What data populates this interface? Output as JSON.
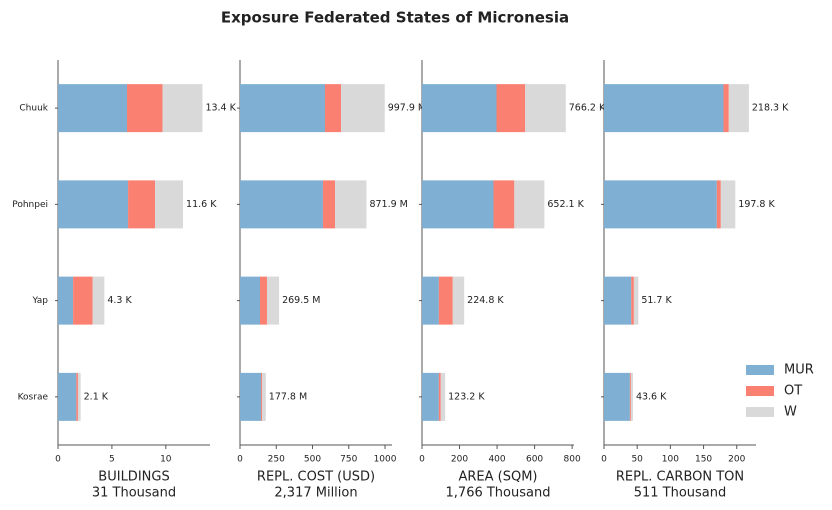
{
  "title": "Exposure Federated States of Micronesia",
  "chart_data": [
    {
      "type": "bar",
      "orientation": "horizontal",
      "xlabel": "BUILDINGS",
      "xlabel_sub": "31 Thousand",
      "categories": [
        "Chuuk",
        "Pohnpei",
        "Yap",
        "Kosrae"
      ],
      "series": [
        {
          "name": "MUR",
          "color": "#7fb0d3",
          "values": [
            6.4,
            6.5,
            1.4,
            1.7
          ]
        },
        {
          "name": "OT",
          "color": "#fa8072",
          "values": [
            3.3,
            2.5,
            1.8,
            0.15
          ]
        },
        {
          "name": "W",
          "color": "#d9d9d9",
          "values": [
            3.7,
            2.6,
            1.1,
            0.25
          ]
        }
      ],
      "total_labels": [
        "13.4 K",
        "11.6 K",
        "4.3 K",
        "2.1 K"
      ],
      "xlim": [
        0,
        14.1
      ],
      "xticks": [
        0,
        5,
        10
      ]
    },
    {
      "type": "bar",
      "orientation": "horizontal",
      "xlabel": "REPL. COST (USD)",
      "xlabel_sub": "2,317 Million",
      "categories": [
        "Chuuk",
        "Pohnpei",
        "Yap",
        "Kosrae"
      ],
      "series": [
        {
          "name": "MUR",
          "color": "#7fb0d3",
          "values": [
            586,
            572,
            138,
            145
          ]
        },
        {
          "name": "OT",
          "color": "#fa8072",
          "values": [
            111,
            83,
            48,
            7
          ]
        },
        {
          "name": "W",
          "color": "#d9d9d9",
          "values": [
            300.9,
            216.9,
            83.5,
            25.8
          ]
        }
      ],
      "total_labels": [
        "997.9 M",
        "871.9 M",
        "269.5 M",
        "177.8 M"
      ],
      "xlim": [
        0,
        1048
      ],
      "xticks": [
        0,
        250,
        500,
        750,
        1000
      ]
    },
    {
      "type": "bar",
      "orientation": "horizontal",
      "xlabel": "AREA (SQM)",
      "xlabel_sub": "1,766 Thousand",
      "categories": [
        "Chuuk",
        "Pohnpei",
        "Yap",
        "Kosrae"
      ],
      "series": [
        {
          "name": "MUR",
          "color": "#7fb0d3",
          "values": [
            397,
            381,
            90,
            90
          ]
        },
        {
          "name": "OT",
          "color": "#fa8072",
          "values": [
            153,
            111,
            74,
            10
          ]
        },
        {
          "name": "W",
          "color": "#d9d9d9",
          "values": [
            216.2,
            160.1,
            60.8,
            23.2
          ]
        }
      ],
      "total_labels": [
        "766.2 K",
        "652.1 K",
        "224.8 K",
        "123.2 K"
      ],
      "xlim": [
        0,
        810
      ],
      "xticks": [
        0,
        200,
        400,
        600,
        800
      ]
    },
    {
      "type": "bar",
      "orientation": "horizontal",
      "xlabel": "REPL. CARBON TON",
      "xlabel_sub": "511 Thousand",
      "categories": [
        "Chuuk",
        "Pohnpei",
        "Yap",
        "Kosrae"
      ],
      "series": [
        {
          "name": "MUR",
          "color": "#7fb0d3",
          "values": [
            180,
            170,
            41,
            39
          ]
        },
        {
          "name": "OT",
          "color": "#fa8072",
          "values": [
            8,
            6,
            4,
            1.5
          ]
        },
        {
          "name": "W",
          "color": "#d9d9d9",
          "values": [
            30.3,
            21.8,
            6.7,
            3.1
          ]
        }
      ],
      "total_labels": [
        "218.3 K",
        "197.8 K",
        "51.7 K",
        "43.6 K"
      ],
      "xlim": [
        0,
        229
      ],
      "xticks": [
        0,
        50,
        100,
        150,
        200
      ]
    }
  ]
}
